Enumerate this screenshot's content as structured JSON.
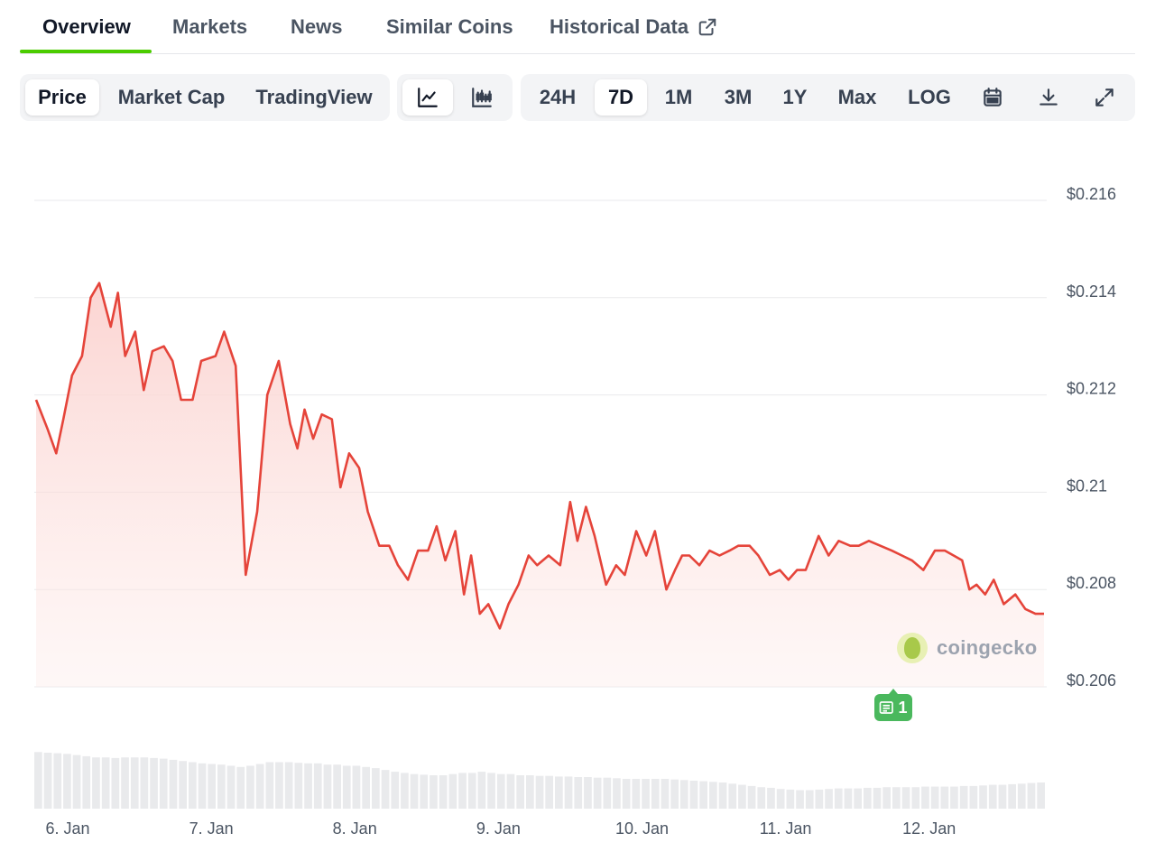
{
  "nav": {
    "tabs": [
      "Overview",
      "Markets",
      "News",
      "Similar Coins",
      "Historical Data"
    ],
    "active": "Overview",
    "external_icon": "external-link-icon"
  },
  "toolbar": {
    "view_tabs": [
      "Price",
      "Market Cap",
      "TradingView"
    ],
    "active_view": "Price",
    "chart_types": [
      {
        "icon": "line-chart-icon",
        "active": true
      },
      {
        "icon": "candlestick-chart-icon",
        "active": false
      }
    ],
    "ranges": [
      "24H",
      "7D",
      "1M",
      "3M",
      "1Y",
      "Max",
      "LOG"
    ],
    "active_range": "7D",
    "actions": [
      {
        "icon": "calendar-icon"
      },
      {
        "icon": "download-icon"
      },
      {
        "icon": "fullscreen-icon"
      }
    ]
  },
  "watermark": "coingecko",
  "news_badge": {
    "count": "1",
    "icon": "newspaper-icon"
  },
  "colors": {
    "accent": "#4bcc00",
    "line": "#e5443a",
    "fill": "#fbd2cf",
    "badge": "#4ab85d"
  },
  "chart_data": {
    "type": "area",
    "x_ticks": [
      "6. Jan",
      "7. Jan",
      "8. Jan",
      "9. Jan",
      "10. Jan",
      "11. Jan",
      "12. Jan"
    ],
    "y_ticks": [
      "$0.216",
      "$0.214",
      "$0.212",
      "$0.21",
      "$0.208",
      "$0.206"
    ],
    "ylim": [
      0.206,
      0.216
    ],
    "xlim": [
      -0.22,
      6.8
    ],
    "grid": true,
    "series": [
      {
        "x": [
          -0.22,
          -0.14,
          -0.08,
          -0.03,
          0.03,
          0.1,
          0.16,
          0.22,
          0.3,
          0.35,
          0.4,
          0.47,
          0.53,
          0.59,
          0.67,
          0.73,
          0.79,
          0.87,
          0.93,
          1.03,
          1.09,
          1.17,
          1.24,
          1.32,
          1.39,
          1.47,
          1.55,
          1.6,
          1.65,
          1.71,
          1.77,
          1.84,
          1.9,
          1.96,
          2.03,
          2.09,
          2.17,
          2.24,
          2.3,
          2.37,
          2.44,
          2.51,
          2.57,
          2.63,
          2.7,
          2.76,
          2.81,
          2.87,
          2.93,
          3.01,
          3.07,
          3.14,
          3.21,
          3.27,
          3.35,
          3.43,
          3.5,
          3.55,
          3.61,
          3.67,
          3.75,
          3.82,
          3.88,
          3.96,
          4.03,
          4.09,
          4.17,
          4.23,
          4.28,
          4.33,
          4.4,
          4.47,
          4.54,
          4.61,
          4.67,
          4.75,
          4.81,
          4.89,
          4.96,
          5.02,
          5.08,
          5.14,
          5.23,
          5.3,
          5.37,
          5.45,
          5.51,
          5.58,
          5.66,
          5.74,
          5.81,
          5.88,
          5.96,
          6.04,
          6.11,
          6.17,
          6.23,
          6.28,
          6.33,
          6.39,
          6.45,
          6.52,
          6.6,
          6.67,
          6.74,
          6.8
        ],
        "y": [
          0.2119,
          0.2113,
          0.2108,
          0.2115,
          0.2124,
          0.2128,
          0.214,
          0.2143,
          0.2134,
          0.2141,
          0.2128,
          0.2133,
          0.2121,
          0.2129,
          0.213,
          0.2127,
          0.2119,
          0.2119,
          0.2127,
          0.2128,
          0.2133,
          0.2126,
          0.2083,
          0.2096,
          0.212,
          0.2127,
          0.2114,
          0.2109,
          0.2117,
          0.2111,
          0.2116,
          0.2115,
          0.2101,
          0.2108,
          0.2105,
          0.2096,
          0.2089,
          0.2089,
          0.2085,
          0.2082,
          0.2088,
          0.2088,
          0.2093,
          0.2086,
          0.2092,
          0.2079,
          0.2087,
          0.2075,
          0.2077,
          0.2072,
          0.2077,
          0.2081,
          0.2087,
          0.2085,
          0.2087,
          0.2085,
          0.2098,
          0.209,
          0.2097,
          0.2091,
          0.2081,
          0.2085,
          0.2083,
          0.2092,
          0.2087,
          0.2092,
          0.208,
          0.2084,
          0.2087,
          0.2087,
          0.2085,
          0.2088,
          0.2087,
          0.2088,
          0.2089,
          0.2089,
          0.2087,
          0.2083,
          0.2084,
          0.2082,
          0.2084,
          0.2084,
          0.2091,
          0.2087,
          0.209,
          0.2089,
          0.2089,
          0.209,
          0.2089,
          0.2088,
          0.2087,
          0.2086,
          0.2084,
          0.2088,
          0.2088,
          0.2087,
          0.2086,
          0.208,
          0.2081,
          0.2079,
          0.2082,
          0.2077,
          0.2079,
          0.2076,
          0.2075,
          0.2075
        ]
      }
    ],
    "volume_relative": [
      0.95,
      0.94,
      0.93,
      0.92,
      0.9,
      0.88,
      0.86,
      0.86,
      0.85,
      0.86,
      0.86,
      0.86,
      0.85,
      0.84,
      0.82,
      0.8,
      0.78,
      0.76,
      0.75,
      0.74,
      0.72,
      0.7,
      0.72,
      0.75,
      0.78,
      0.78,
      0.78,
      0.77,
      0.76,
      0.76,
      0.74,
      0.74,
      0.72,
      0.72,
      0.7,
      0.68,
      0.65,
      0.62,
      0.6,
      0.58,
      0.57,
      0.56,
      0.56,
      0.58,
      0.6,
      0.6,
      0.62,
      0.6,
      0.58,
      0.58,
      0.56,
      0.56,
      0.55,
      0.55,
      0.54,
      0.54,
      0.53,
      0.53,
      0.52,
      0.52,
      0.51,
      0.5,
      0.5,
      0.5,
      0.5,
      0.5,
      0.49,
      0.48,
      0.47,
      0.46,
      0.45,
      0.44,
      0.42,
      0.4,
      0.38,
      0.36,
      0.35,
      0.33,
      0.32,
      0.31,
      0.31,
      0.32,
      0.33,
      0.34,
      0.34,
      0.34,
      0.35,
      0.35,
      0.36,
      0.36,
      0.36,
      0.36,
      0.37,
      0.37,
      0.37,
      0.37,
      0.38,
      0.38,
      0.39,
      0.4,
      0.4,
      0.41,
      0.42,
      0.43,
      0.44
    ]
  }
}
